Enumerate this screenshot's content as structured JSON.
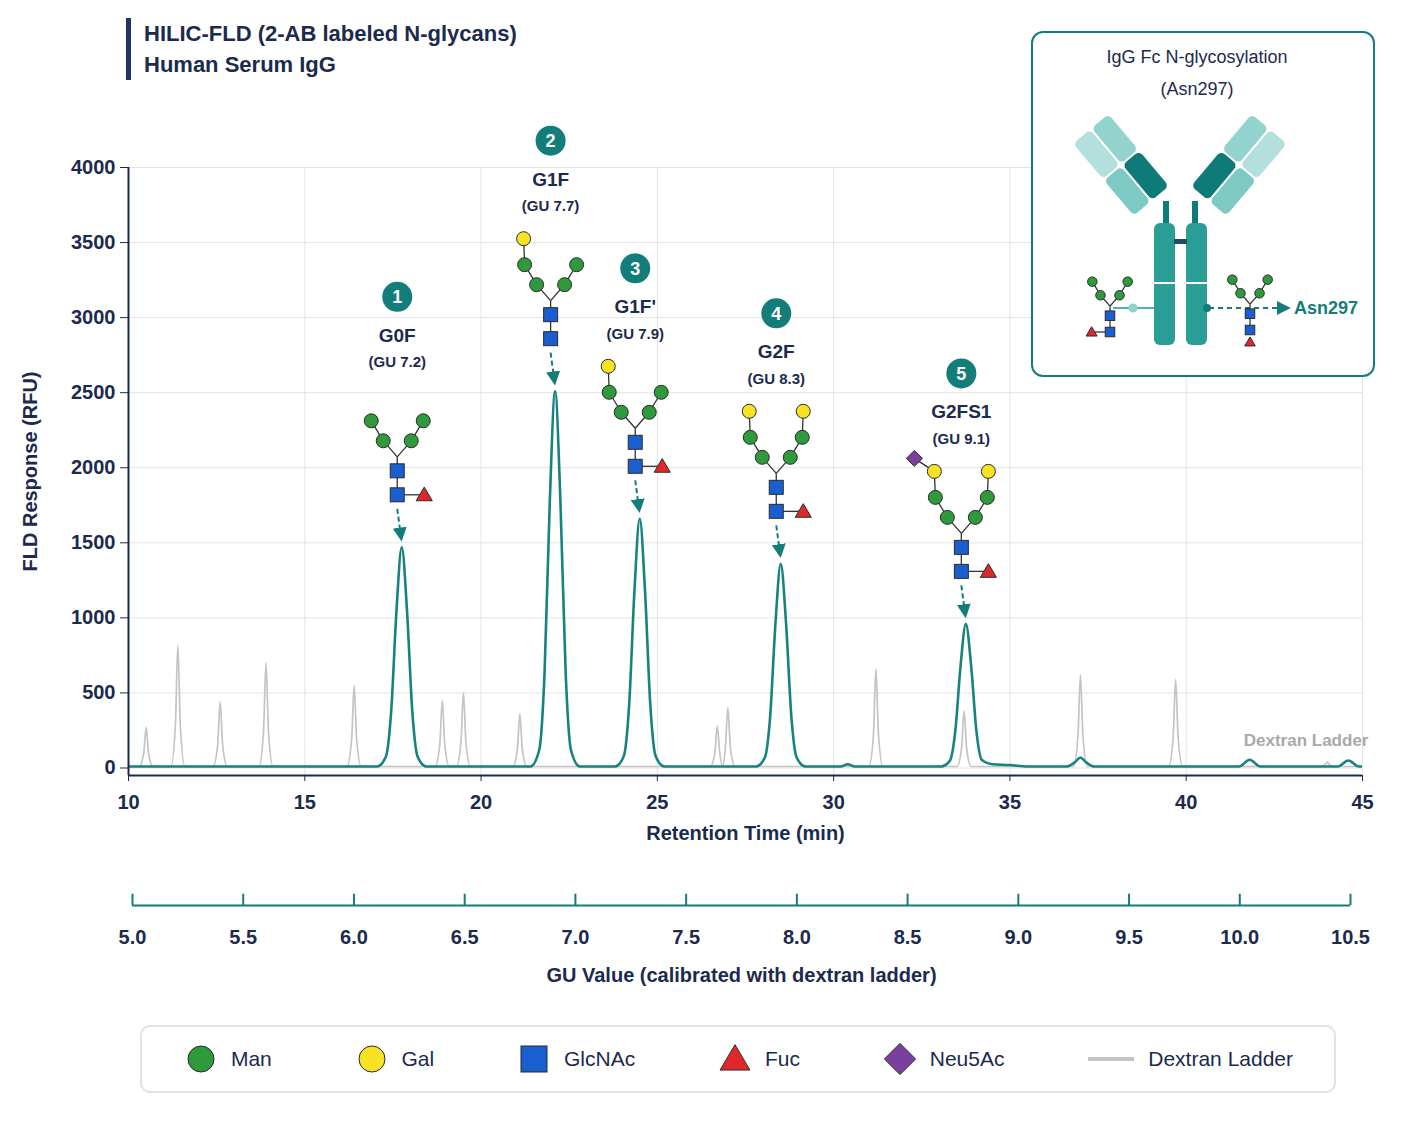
{
  "chart_data": {
    "type": "line",
    "title": "HILIC-FLD (2-AB labeled N-glycans)",
    "subtitle": "Human Serum IgG",
    "x_label": "Retention Time (min)",
    "y_label": "FLD Response (RFU)",
    "xlim": [
      10,
      45
    ],
    "xticks": [
      10,
      15,
      20,
      25,
      30,
      35,
      40,
      45
    ],
    "ylim": [
      -50,
      4000
    ],
    "yticks": [
      0,
      500,
      1000,
      1500,
      2000,
      2500,
      3000,
      3500,
      4000
    ],
    "x2lim": [
      5,
      10.5
    ],
    "x2ticks": [
      {
        "value": 5,
        "label": "5.0"
      },
      {
        "value": 5.5,
        "label": "5.5"
      },
      {
        "value": 6,
        "label": "6.0"
      },
      {
        "value": 6.5,
        "label": "6.5"
      },
      {
        "value": 7,
        "label": "7.0"
      },
      {
        "value": 7.5,
        "label": "7.5"
      },
      {
        "value": 8,
        "label": "8.0"
      },
      {
        "value": 8.5,
        "label": "8.5"
      },
      {
        "value": 9,
        "label": "9.0"
      },
      {
        "value": 9.5,
        "label": "9.5"
      },
      {
        "value": 10,
        "label": "10.0"
      },
      {
        "value": 10.5,
        "label": "10.5"
      }
    ],
    "x2_label": "GU Value (calibrated with dextran ladder)",
    "grid": true,
    "legend": "bottom",
    "series": [
      {
        "name": "Dextran Ladder",
        "color": "#c4c4c4",
        "x": [
          10,
          10.3,
          10.43,
          10.5,
          10.57,
          10.7,
          11.2,
          11.33,
          11.4,
          11.47,
          11.6,
          12.4,
          12.53,
          12.6,
          12.67,
          12.8,
          13.7,
          13.83,
          13.9,
          13.97,
          14.1,
          16.2,
          16.33,
          16.4,
          16.47,
          16.6,
          18.7,
          18.83,
          18.9,
          18.97,
          19.1,
          19.3,
          19.43,
          19.5,
          19.57,
          19.7,
          20.9,
          21.03,
          21.1,
          21.17,
          21.3,
          26.5,
          26.63,
          26.7,
          26.77,
          26.85,
          26.93,
          27,
          27.07,
          27.2,
          31,
          31.13,
          31.2,
          31.27,
          31.4,
          33.5,
          33.63,
          33.7,
          33.77,
          33.9,
          36.8,
          36.93,
          37,
          37.07,
          37.2,
          39.5,
          39.63,
          39.7,
          39.77,
          39.9,
          43.8,
          43.93,
          44,
          44.07,
          44.2,
          45
        ],
        "values": [
          10,
          10,
          95,
          270,
          95,
          10,
          10,
          285,
          820,
          285,
          10,
          10,
          155,
          440,
          155,
          10,
          10,
          245,
          700,
          245,
          10,
          10,
          195,
          550,
          195,
          10,
          10,
          160,
          450,
          160,
          10,
          10,
          175,
          500,
          175,
          10,
          10,
          125,
          360,
          125,
          10,
          10,
          100,
          280,
          100,
          15,
          140,
          400,
          140,
          10,
          10,
          230,
          660,
          230,
          10,
          10,
          135,
          380,
          135,
          10,
          10,
          215,
          620,
          215,
          10,
          10,
          205,
          590,
          205,
          10,
          10,
          20,
          40,
          20,
          10,
          10
        ]
      },
      {
        "color": "#17837f",
        "x": [
          10,
          17.05,
          17.3,
          17.45,
          17.6,
          17.75,
          17.9,
          18.05,
          18.2,
          18.45,
          21.4,
          21.65,
          21.8,
          21.95,
          22.1,
          22.25,
          22.4,
          22.55,
          22.8,
          23.8,
          24.05,
          24.2,
          24.35,
          24.5,
          24.65,
          24.8,
          24.95,
          25.2,
          27.8,
          28.05,
          28.2,
          28.35,
          28.5,
          28.65,
          28.8,
          28.95,
          29.2,
          30.2,
          30.4,
          30.6,
          33.05,
          33.3,
          33.45,
          33.6,
          33.75,
          33.9,
          34.05,
          34.2,
          34.5,
          35,
          35.5,
          36.6,
          36.85,
          37,
          37.15,
          37.4,
          41.5,
          41.8,
          42.1,
          44.3,
          44.6,
          44.9,
          45
        ],
        "values": [
          10,
          10,
          75,
          375,
          1045,
          1470,
          1045,
          375,
          75,
          10,
          10,
          120,
          630,
          1780,
          2510,
          1780,
          630,
          120,
          10,
          10,
          80,
          420,
          1180,
          1660,
          1180,
          420,
          80,
          10,
          10,
          70,
          345,
          965,
          1360,
          965,
          345,
          70,
          10,
          10,
          25,
          10,
          10,
          50,
          245,
          680,
          960,
          680,
          245,
          55,
          25,
          20,
          10,
          10,
          40,
          70,
          40,
          10,
          10,
          55,
          10,
          10,
          50,
          10,
          10
        ]
      }
    ],
    "annotations": [
      {
        "number": "1",
        "label": "G0F",
        "gu_label": "(GU 7.2)",
        "x": 17.75,
        "y": 1470,
        "glycan": {
          "gal": [
            false,
            false
          ],
          "neu5ac": [
            false,
            false
          ],
          "fucose": true
        }
      },
      {
        "number": "2",
        "label": "G1F",
        "gu_label": "(GU 7.7)",
        "x": 22.1,
        "y": 2510,
        "glycan": {
          "gal": [
            true,
            false
          ],
          "neu5ac": [
            false,
            false
          ],
          "fucose": false
        }
      },
      {
        "number": "3",
        "label": "G1F'",
        "gu_label": "(GU 7.9)",
        "x": 24.5,
        "y": 1660,
        "glycan": {
          "gal": [
            true,
            false
          ],
          "neu5ac": [
            false,
            false
          ],
          "fucose": true
        }
      },
      {
        "number": "4",
        "label": "G2F",
        "gu_label": "(GU 8.3)",
        "x": 28.5,
        "y": 1360,
        "glycan": {
          "gal": [
            true,
            true
          ],
          "neu5ac": [
            false,
            false
          ],
          "fucose": true
        }
      },
      {
        "number": "5",
        "label": "G2FS1",
        "gu_label": "(GU 9.1)",
        "x": 33.75,
        "y": 960,
        "glycan": {
          "gal": [
            true,
            true
          ],
          "neu5ac": [
            true,
            false
          ],
          "fucose": true
        }
      }
    ],
    "symbols": [
      {
        "name": "Man",
        "color": "#2e9a3b",
        "marker": "circle"
      },
      {
        "name": "Gal",
        "color": "#f7e324",
        "marker": "circle"
      },
      {
        "name": "GlcNAc",
        "color": "#1a5fd0",
        "marker": "square"
      },
      {
        "name": "Fuc",
        "color": "#e0282a",
        "marker": "triangle"
      },
      {
        "name": "Neu5Ac",
        "color": "#7b3fa0",
        "marker": "diamond"
      }
    ],
    "notes": [
      {
        "text": "Dextran Ladder",
        "x": 43.4,
        "y": 185
      }
    ],
    "inset": {
      "title": "IgG Fc N-glycosylation",
      "subtitle": "(Asn297)",
      "site_label": "Asn297"
    }
  }
}
